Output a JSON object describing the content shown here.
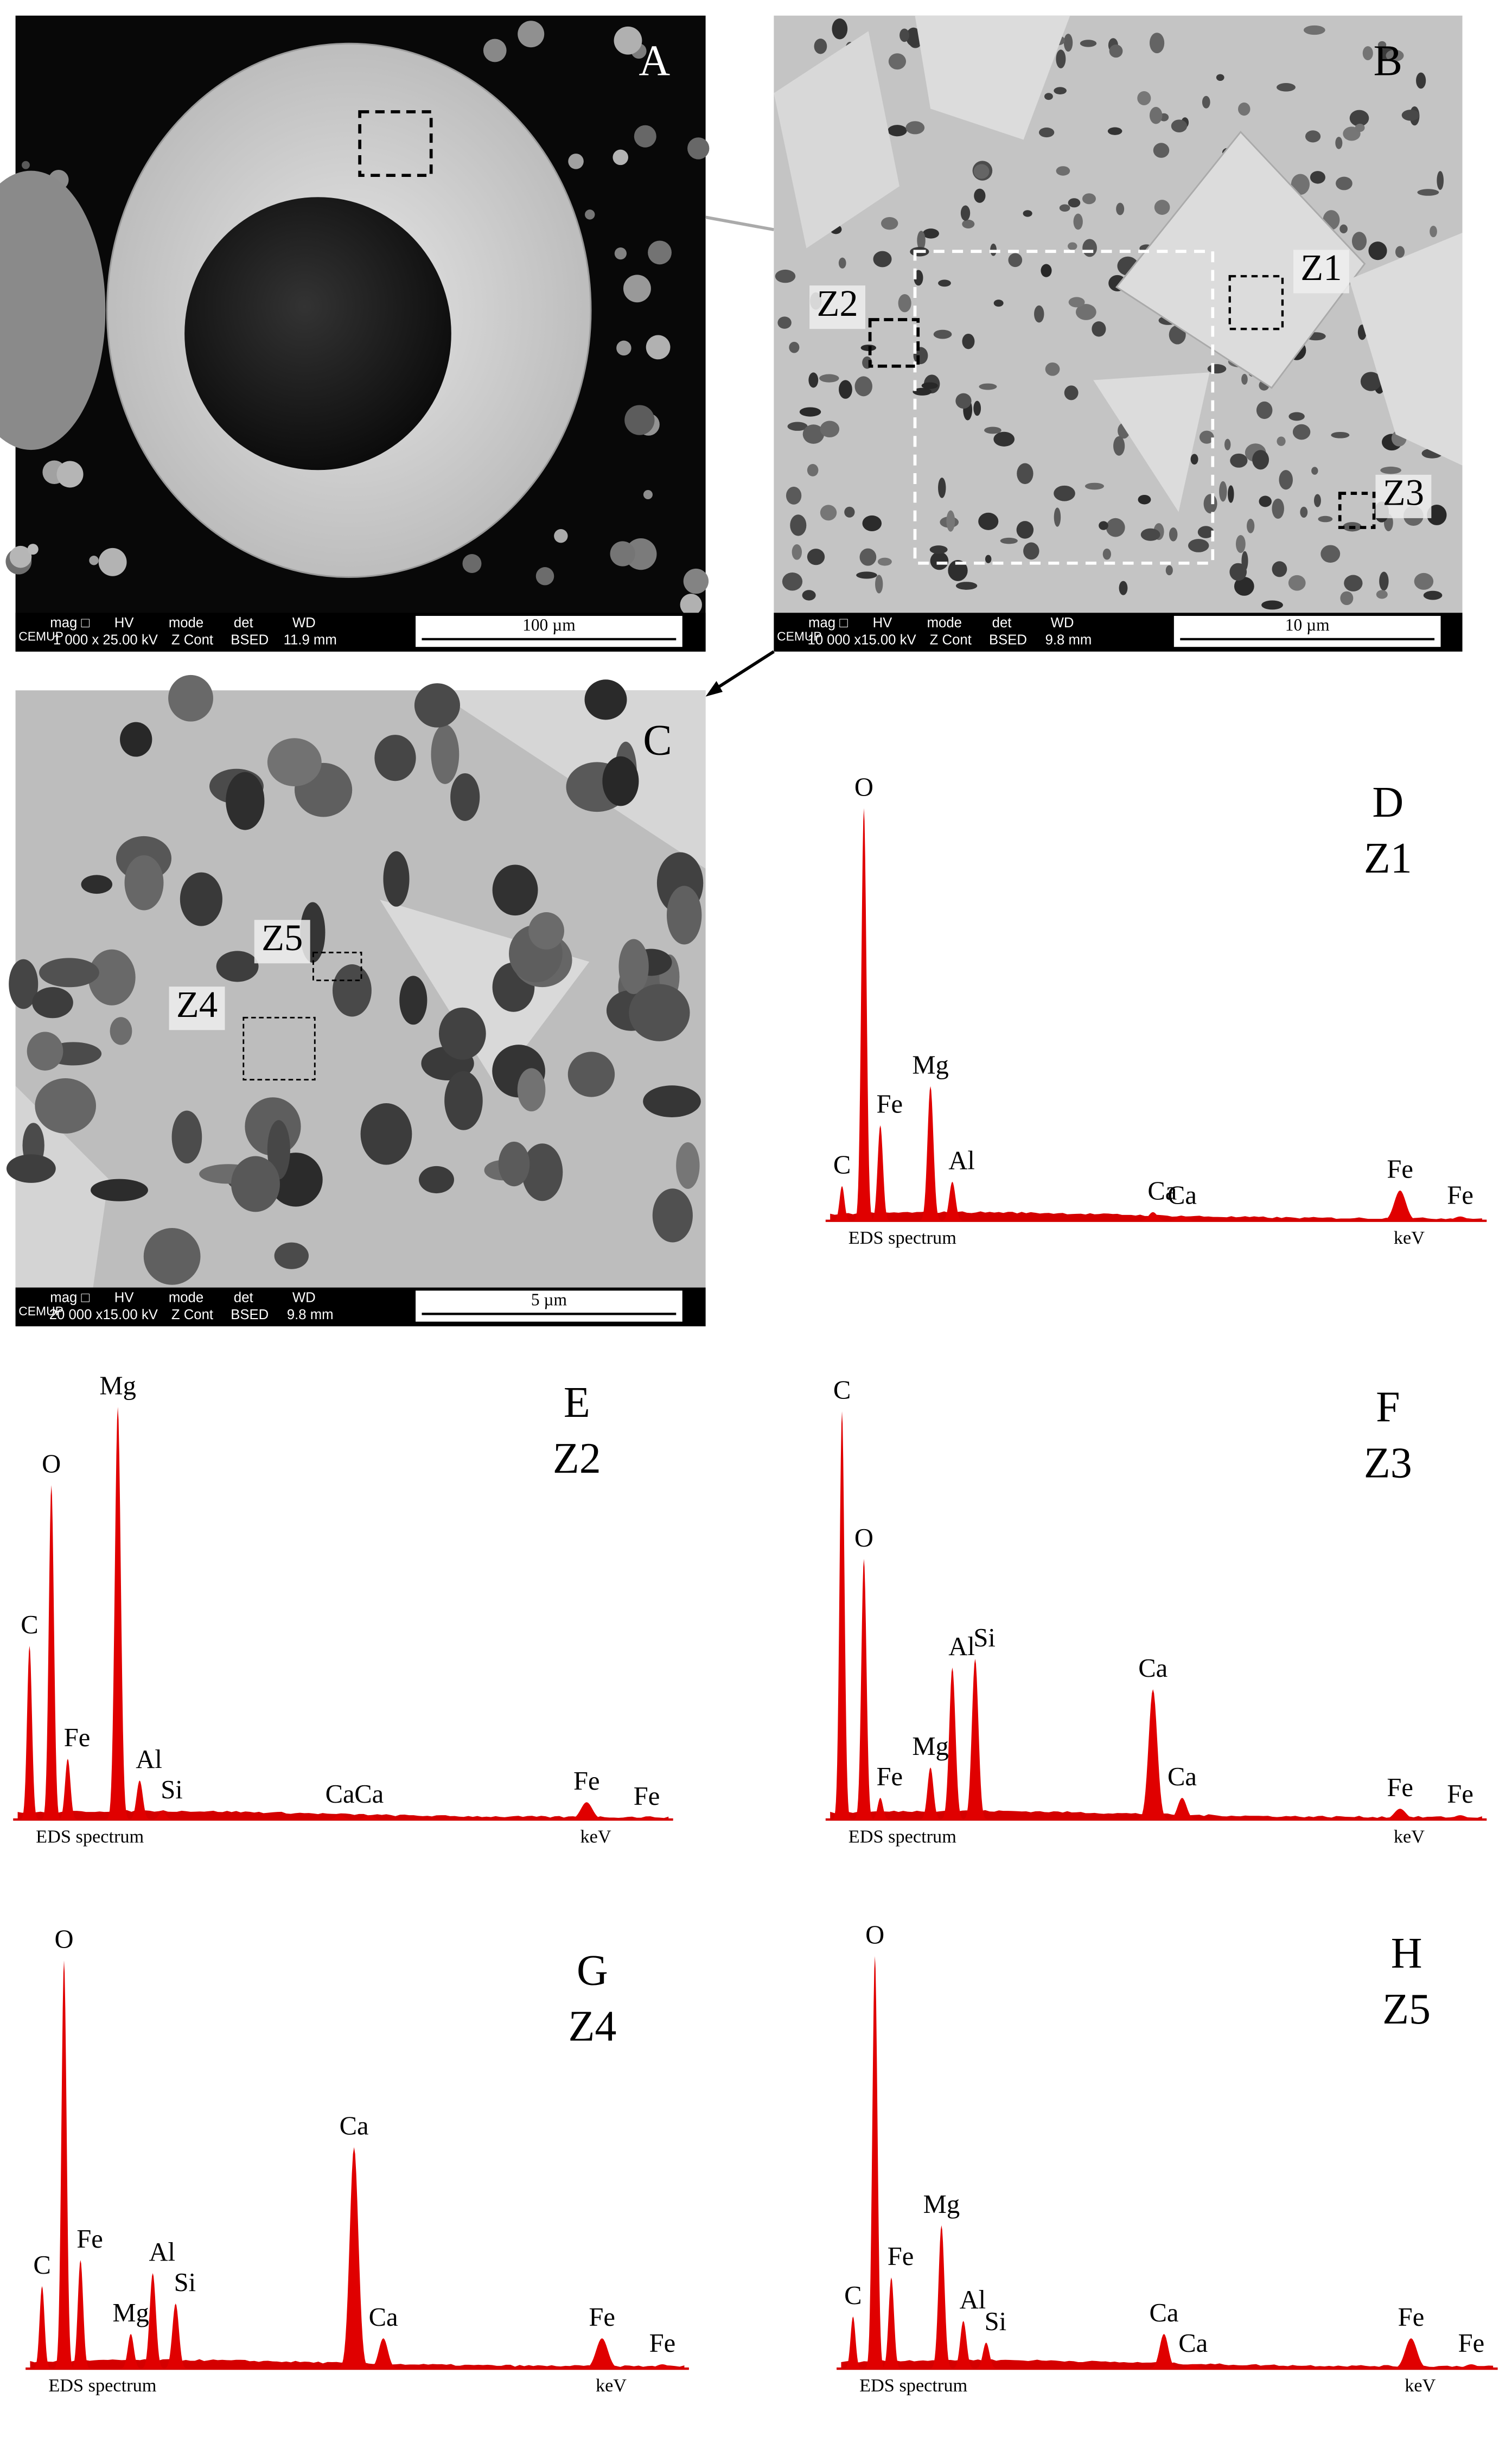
{
  "images": [
    {
      "letter": "A",
      "info": {
        "logo": "CEMUP",
        "heads": [
          "mag □",
          "HV",
          "mode",
          "det",
          "WD"
        ],
        "vals": [
          "1 000 x",
          "25.00 kV",
          "Z Cont",
          "BSED",
          "11.9 mm"
        ],
        "scale": "100 µm"
      },
      "zones": []
    },
    {
      "letter": "B",
      "info": {
        "logo": "CEMUP",
        "heads": [
          "mag □",
          "HV",
          "mode",
          "det",
          "WD"
        ],
        "vals": [
          "10 000 x",
          "15.00 kV",
          "Z Cont",
          "BSED",
          "9.8 mm"
        ],
        "scale": "10 µm"
      },
      "zones": [
        "Z1",
        "Z2",
        "Z3"
      ]
    },
    {
      "letter": "C",
      "info": {
        "logo": "CEMUP",
        "heads": [
          "mag □",
          "HV",
          "mode",
          "det",
          "WD"
        ],
        "vals": [
          "20 000 x",
          "15.00 kV",
          "Z Cont",
          "BSED",
          "9.8 mm"
        ],
        "scale": "5 µm"
      },
      "zones": [
        "Z5",
        "Z4"
      ]
    }
  ],
  "spectra": [
    {
      "letter": "D",
      "zone": "Z1",
      "axis_label": "EDS spectrum",
      "unit_label": "keV",
      "peaks": [
        {
          "label": "C",
          "energy": 0.28,
          "height": 8
        },
        {
          "label": "O",
          "energy": 0.52,
          "height": 95
        },
        {
          "label": "Fe",
          "energy": 0.7,
          "height": 22
        },
        {
          "label": "Mg",
          "energy": 1.25,
          "height": 31
        },
        {
          "label": "Al",
          "energy": 1.49,
          "height": 9
        },
        {
          "label": "Ca",
          "energy": 3.69,
          "height": 2
        },
        {
          "label": "Ca",
          "energy": 4.01,
          "height": 1
        },
        {
          "label": "Fe",
          "energy": 6.4,
          "height": 7
        },
        {
          "label": "Fe",
          "energy": 7.06,
          "height": 1
        }
      ]
    },
    {
      "letter": "E",
      "zone": "Z2",
      "axis_label": "EDS spectrum",
      "unit_label": "keV",
      "peaks": [
        {
          "label": "C",
          "energy": 0.28,
          "height": 40
        },
        {
          "label": "O",
          "energy": 0.52,
          "height": 77
        },
        {
          "label": "Fe",
          "energy": 0.7,
          "height": 14
        },
        {
          "label": "Mg",
          "energy": 1.25,
          "height": 95
        },
        {
          "label": "Al",
          "energy": 1.49,
          "height": 9
        },
        {
          "label": "Si",
          "energy": 1.74,
          "height": 2
        },
        {
          "label": "Ca",
          "energy": 3.69,
          "height": 1
        },
        {
          "label": "Ca",
          "energy": 4.01,
          "height": 1
        },
        {
          "label": "Fe",
          "energy": 6.4,
          "height": 4
        },
        {
          "label": "Fe",
          "energy": 7.06,
          "height": 0.5
        }
      ]
    },
    {
      "letter": "F",
      "zone": "Z3",
      "axis_label": "EDS spectrum",
      "unit_label": "keV",
      "peaks": [
        {
          "label": "C",
          "energy": 0.28,
          "height": 94
        },
        {
          "label": "O",
          "energy": 0.52,
          "height": 60
        },
        {
          "label": "Fe",
          "energy": 0.7,
          "height": 5
        },
        {
          "label": "Mg",
          "energy": 1.25,
          "height": 12
        },
        {
          "label": "Al",
          "energy": 1.49,
          "height": 35
        },
        {
          "label": "Si",
          "energy": 1.74,
          "height": 37
        },
        {
          "label": "Ca",
          "energy": 3.69,
          "height": 30
        },
        {
          "label": "Ca",
          "energy": 4.01,
          "height": 5
        },
        {
          "label": "Fe",
          "energy": 6.4,
          "height": 2.5
        },
        {
          "label": "Fe",
          "energy": 7.06,
          "height": 1
        }
      ]
    },
    {
      "letter": "G",
      "zone": "Z4",
      "axis_label": "EDS spectrum",
      "unit_label": "keV",
      "peaks": [
        {
          "label": "C",
          "energy": 0.28,
          "height": 19
        },
        {
          "label": "O",
          "energy": 0.52,
          "height": 94
        },
        {
          "label": "Fe",
          "energy": 0.7,
          "height": 25
        },
        {
          "label": "Mg",
          "energy": 1.25,
          "height": 8
        },
        {
          "label": "Al",
          "energy": 1.49,
          "height": 22
        },
        {
          "label": "Si",
          "energy": 1.74,
          "height": 15
        },
        {
          "label": "Ca",
          "energy": 3.69,
          "height": 51
        },
        {
          "label": "Ca",
          "energy": 4.01,
          "height": 7
        },
        {
          "label": "Fe",
          "energy": 6.4,
          "height": 7
        },
        {
          "label": "Fe",
          "energy": 7.06,
          "height": 1
        }
      ]
    },
    {
      "letter": "H",
      "zone": "Z5",
      "axis_label": "EDS spectrum",
      "unit_label": "keV",
      "peaks": [
        {
          "label": "C",
          "energy": 0.28,
          "height": 12
        },
        {
          "label": "O",
          "energy": 0.52,
          "height": 95
        },
        {
          "label": "Fe",
          "energy": 0.7,
          "height": 21
        },
        {
          "label": "Mg",
          "energy": 1.25,
          "height": 33
        },
        {
          "label": "Al",
          "energy": 1.49,
          "height": 11
        },
        {
          "label": "Si",
          "energy": 1.74,
          "height": 6
        },
        {
          "label": "Ca",
          "energy": 3.69,
          "height": 8
        },
        {
          "label": "Ca",
          "energy": 4.01,
          "height": 1
        },
        {
          "label": "Fe",
          "energy": 6.4,
          "height": 7
        },
        {
          "label": "Fe",
          "energy": 7.06,
          "height": 1
        }
      ]
    }
  ]
}
